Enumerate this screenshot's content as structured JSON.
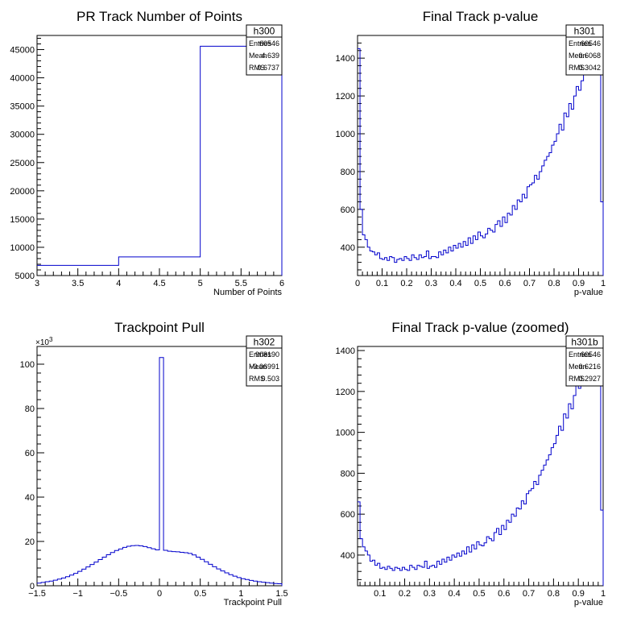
{
  "colors": {
    "line": "#0000cc",
    "axis": "#000000",
    "background": "#ffffff"
  },
  "chart_data": [
    {
      "type": "histogram",
      "name": "h300",
      "title": "PR Track Number of Points",
      "xlabel": "Number of Points",
      "ylabel": "",
      "xlim": [
        3,
        6
      ],
      "ylim": [
        5000,
        47500
      ],
      "xticks": [
        3,
        3.5,
        4,
        4.5,
        5,
        5.5,
        6
      ],
      "xtick_labels": [
        "3",
        "3.5",
        "4",
        "4.5",
        "5",
        "5.5",
        "6"
      ],
      "yticks": [
        5000,
        10000,
        15000,
        20000,
        25000,
        30000,
        35000,
        40000,
        45000
      ],
      "ytick_labels": [
        "5000",
        "10000",
        "15000",
        "20000",
        "25000",
        "30000",
        "35000",
        "40000",
        "45000"
      ],
      "yexponent": "",
      "bin_edges": [
        3,
        4,
        5,
        6
      ],
      "values": [
        6800,
        8300,
        45600
      ],
      "stats": {
        "title": "h300",
        "rows": [
          [
            "Entries",
            "60546"
          ],
          [
            "Mean",
            "4.639"
          ],
          [
            "RMS",
            "0.6737"
          ]
        ]
      }
    },
    {
      "type": "histogram",
      "name": "h301",
      "title": "Final Track p-value",
      "xlabel": "p-value",
      "ylabel": "",
      "xlim": [
        0,
        1
      ],
      "ylim": [
        250,
        1520
      ],
      "xticks": [
        0,
        0.1,
        0.2,
        0.3,
        0.4,
        0.5,
        0.6,
        0.7,
        0.8,
        0.9,
        1
      ],
      "xtick_labels": [
        "0",
        "0.1",
        "0.2",
        "0.3",
        "0.4",
        "0.5",
        "0.6",
        "0.7",
        "0.8",
        "0.9",
        "1"
      ],
      "yticks": [
        400,
        600,
        800,
        1000,
        1200,
        1400
      ],
      "ytick_labels": [
        "400",
        "600",
        "800",
        "1000",
        "1200",
        "1400"
      ],
      "yexponent": "",
      "bin_edges": [
        0,
        0.01,
        0.02,
        0.03,
        0.04,
        0.05,
        0.06,
        0.07,
        0.08,
        0.09,
        0.1,
        0.11,
        0.12,
        0.13,
        0.14,
        0.15,
        0.16,
        0.17,
        0.18,
        0.19,
        0.2,
        0.21,
        0.22,
        0.23,
        0.24,
        0.25,
        0.26,
        0.27,
        0.28,
        0.29,
        0.3,
        0.31,
        0.32,
        0.33,
        0.34,
        0.35,
        0.36,
        0.37,
        0.38,
        0.39,
        0.4,
        0.41,
        0.42,
        0.43,
        0.44,
        0.45,
        0.46,
        0.47,
        0.48,
        0.49,
        0.5,
        0.51,
        0.52,
        0.53,
        0.54,
        0.55,
        0.56,
        0.57,
        0.58,
        0.59,
        0.6,
        0.61,
        0.62,
        0.63,
        0.64,
        0.65,
        0.66,
        0.67,
        0.68,
        0.69,
        0.7,
        0.71,
        0.72,
        0.73,
        0.74,
        0.75,
        0.76,
        0.77,
        0.78,
        0.79,
        0.8,
        0.81,
        0.82,
        0.83,
        0.84,
        0.85,
        0.86,
        0.87,
        0.88,
        0.89,
        0.9,
        0.91,
        0.92,
        0.93,
        0.94,
        0.95,
        0.96,
        0.97,
        0.98,
        0.99,
        1
      ],
      "values": [
        1450,
        600,
        465,
        440,
        400,
        380,
        375,
        360,
        370,
        340,
        335,
        345,
        330,
        350,
        345,
        320,
        335,
        340,
        330,
        350,
        340,
        330,
        360,
        345,
        335,
        360,
        345,
        350,
        380,
        340,
        350,
        350,
        345,
        375,
        360,
        385,
        370,
        400,
        380,
        410,
        395,
        420,
        400,
        430,
        410,
        450,
        420,
        460,
        440,
        480,
        460,
        450,
        470,
        500,
        490,
        480,
        520,
        540,
        510,
        560,
        530,
        580,
        570,
        620,
        600,
        650,
        640,
        680,
        660,
        720,
        730,
        740,
        780,
        760,
        800,
        830,
        860,
        880,
        900,
        940,
        960,
        1000,
        1050,
        1020,
        1110,
        1090,
        1160,
        1130,
        1200,
        1250,
        1230,
        1280,
        1320,
        1350,
        1370,
        1390,
        1440,
        1480,
        1510,
        640
      ],
      "stats": {
        "title": "h301",
        "rows": [
          [
            "Entries",
            "60546"
          ],
          [
            "Mean",
            "0.6068"
          ],
          [
            "RMS",
            "0.3042"
          ]
        ]
      }
    },
    {
      "type": "histogram",
      "name": "h302",
      "title": "Trackpoint Pull",
      "xlabel": "Trackpoint Pull",
      "ylabel": "",
      "xlim": [
        -1.5,
        1.5
      ],
      "ylim": [
        0,
        108
      ],
      "xticks": [
        -1.5,
        -1,
        -0.5,
        0,
        0.5,
        1,
        1.5
      ],
      "xtick_labels": [
        "−1.5",
        "−1",
        "−0.5",
        "0",
        "0.5",
        "1",
        "1.5"
      ],
      "yticks": [
        0,
        20,
        40,
        60,
        80,
        100
      ],
      "ytick_labels": [
        "0",
        "20",
        "40",
        "60",
        "80",
        "100"
      ],
      "yexponent": "×10",
      "yexponent_power": "3",
      "bin_edges": [
        -1.5,
        -1.45,
        -1.4,
        -1.35,
        -1.3,
        -1.25,
        -1.2,
        -1.15,
        -1.1,
        -1.05,
        -1,
        -0.95,
        -0.9,
        -0.85,
        -0.8,
        -0.75,
        -0.7,
        -0.65,
        -0.6,
        -0.55,
        -0.5,
        -0.45,
        -0.4,
        -0.35,
        -0.3,
        -0.25,
        -0.2,
        -0.15,
        -0.1,
        -0.05,
        0,
        0.05,
        0.1,
        0.15,
        0.2,
        0.25,
        0.3,
        0.35,
        0.4,
        0.45,
        0.5,
        0.55,
        0.6,
        0.65,
        0.7,
        0.75,
        0.8,
        0.85,
        0.9,
        0.95,
        1,
        1.05,
        1.1,
        1.15,
        1.2,
        1.25,
        1.3,
        1.35,
        1.4,
        1.45,
        1.5
      ],
      "values": [
        1.2,
        1.5,
        1.8,
        2.1,
        2.5,
        3.0,
        3.5,
        4.1,
        4.8,
        5.6,
        6.5,
        7.5,
        8.5,
        9.6,
        10.7,
        11.8,
        12.9,
        14.0,
        15.0,
        15.9,
        16.6,
        17.3,
        17.8,
        18.1,
        18.2,
        18.0,
        17.7,
        17.2,
        16.7,
        16.2,
        103.0,
        16.0,
        15.6,
        15.4,
        15.3,
        15.1,
        14.9,
        14.6,
        13.9,
        12.9,
        11.9,
        10.8,
        9.7,
        8.6,
        7.6,
        6.7,
        5.8,
        5.0,
        4.3,
        3.7,
        3.2,
        2.8,
        2.4,
        2.1,
        1.8,
        1.6,
        1.4,
        1.2,
        1.0,
        0.9
      ],
      "stats": {
        "title": "h302",
        "rows": [
          [
            "Entries",
            "908190"
          ],
          [
            "Mean",
            "−0.06991"
          ],
          [
            "RMS",
            "0.503"
          ]
        ]
      }
    },
    {
      "type": "histogram",
      "name": "h301b",
      "title": "Final Track p-value (zoomed)",
      "xlabel": "p-value",
      "ylabel": "",
      "xlim": [
        0.01,
        1
      ],
      "ylim": [
        250,
        1420
      ],
      "xticks": [
        0.1,
        0.2,
        0.3,
        0.4,
        0.5,
        0.6,
        0.7,
        0.8,
        0.9,
        1
      ],
      "xtick_labels": [
        "0.1",
        "0.2",
        "0.3",
        "0.4",
        "0.5",
        "0.6",
        "0.7",
        "0.8",
        "0.9",
        "1"
      ],
      "yticks": [
        400,
        600,
        800,
        1000,
        1200,
        1400
      ],
      "ytick_labels": [
        "400",
        "600",
        "800",
        "1000",
        "1200",
        "1400"
      ],
      "yexponent": "",
      "bin_edges": [
        0.01,
        0.02,
        0.03,
        0.04,
        0.05,
        0.06,
        0.07,
        0.08,
        0.09,
        0.1,
        0.11,
        0.12,
        0.13,
        0.14,
        0.15,
        0.16,
        0.17,
        0.18,
        0.19,
        0.2,
        0.21,
        0.22,
        0.23,
        0.24,
        0.25,
        0.26,
        0.27,
        0.28,
        0.29,
        0.3,
        0.31,
        0.32,
        0.33,
        0.34,
        0.35,
        0.36,
        0.37,
        0.38,
        0.39,
        0.4,
        0.41,
        0.42,
        0.43,
        0.44,
        0.45,
        0.46,
        0.47,
        0.48,
        0.49,
        0.5,
        0.51,
        0.52,
        0.53,
        0.54,
        0.55,
        0.56,
        0.57,
        0.58,
        0.59,
        0.6,
        0.61,
        0.62,
        0.63,
        0.64,
        0.65,
        0.66,
        0.67,
        0.68,
        0.69,
        0.7,
        0.71,
        0.72,
        0.73,
        0.74,
        0.75,
        0.76,
        0.77,
        0.78,
        0.79,
        0.8,
        0.81,
        0.82,
        0.83,
        0.84,
        0.85,
        0.86,
        0.87,
        0.88,
        0.89,
        0.9,
        0.91,
        0.92,
        0.93,
        0.94,
        0.95,
        0.96,
        0.97,
        0.98,
        0.99,
        1
      ],
      "values": [
        660,
        480,
        440,
        420,
        400,
        370,
        375,
        350,
        360,
        335,
        340,
        330,
        345,
        335,
        325,
        340,
        335,
        325,
        340,
        330,
        325,
        350,
        340,
        330,
        350,
        345,
        340,
        370,
        335,
        345,
        350,
        340,
        370,
        355,
        380,
        365,
        390,
        375,
        400,
        390,
        410,
        395,
        420,
        405,
        440,
        415,
        450,
        430,
        465,
        450,
        445,
        460,
        490,
        480,
        470,
        510,
        530,
        500,
        545,
        525,
        570,
        560,
        600,
        590,
        630,
        625,
        665,
        650,
        700,
        715,
        725,
        760,
        745,
        790,
        815,
        840,
        865,
        890,
        925,
        945,
        985,
        1030,
        1010,
        1090,
        1070,
        1140,
        1115,
        1180,
        1230,
        1215,
        1260,
        1300,
        1330,
        1350,
        1370,
        1415,
        1440,
        1470,
        620
      ],
      "stats": {
        "title": "h301b",
        "rows": [
          [
            "Entries",
            "60546"
          ],
          [
            "Mean",
            "0.6216"
          ],
          [
            "RMS",
            "0.2927"
          ]
        ]
      }
    }
  ]
}
